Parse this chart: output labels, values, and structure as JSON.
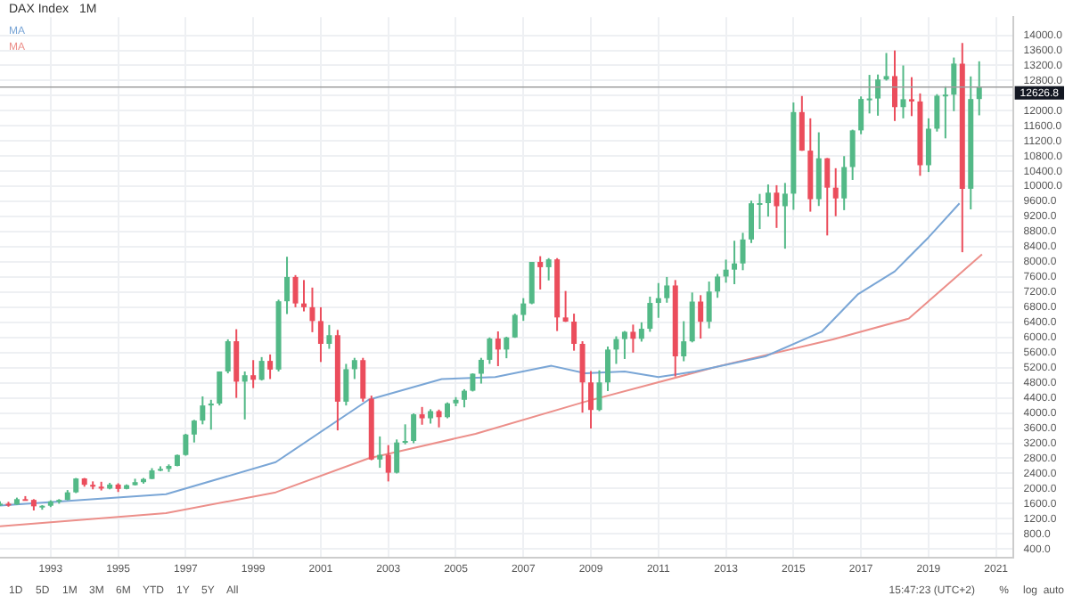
{
  "chart_data": {
    "type": "candlestick",
    "title": "DAX Index",
    "subtitle": "1M",
    "xlim": [
      "1991-07",
      "2021-07"
    ],
    "xticks": [
      {
        "value": "1993",
        "label": "1993"
      },
      {
        "value": "1995",
        "label": "1995"
      },
      {
        "value": "1997",
        "label": "1997"
      },
      {
        "value": "1999",
        "label": "1999"
      },
      {
        "value": "2001",
        "label": "2001"
      },
      {
        "value": "2003",
        "label": "2003"
      },
      {
        "value": "2005",
        "label": "2005"
      },
      {
        "value": "2007",
        "label": "2007"
      },
      {
        "value": "2009",
        "label": "2009"
      },
      {
        "value": "2011",
        "label": "2011"
      },
      {
        "value": "2013",
        "label": "2013"
      },
      {
        "value": "2015",
        "label": "2015"
      },
      {
        "value": "2017",
        "label": "2017"
      },
      {
        "value": "2019",
        "label": "2019"
      },
      {
        "value": "2021",
        "label": "2021"
      }
    ],
    "ylim": [
      180,
      14480
    ],
    "yticks": [
      {
        "value": 400,
        "label": "400.0"
      },
      {
        "value": 800,
        "label": "800.0"
      },
      {
        "value": 1200,
        "label": "1200.0"
      },
      {
        "value": 1600,
        "label": "1600.0"
      },
      {
        "value": 2000,
        "label": "2000.0"
      },
      {
        "value": 2400,
        "label": "2400.0"
      },
      {
        "value": 2800,
        "label": "2800.0"
      },
      {
        "value": 3200,
        "label": "3200.0"
      },
      {
        "value": 3600,
        "label": "3600.0"
      },
      {
        "value": 4000,
        "label": "4000.0"
      },
      {
        "value": 4400,
        "label": "4400.0"
      },
      {
        "value": 4800,
        "label": "4800.0"
      },
      {
        "value": 5200,
        "label": "5200.0"
      },
      {
        "value": 5600,
        "label": "5600.0"
      },
      {
        "value": 6000,
        "label": "6000.0"
      },
      {
        "value": 6400,
        "label": "6400.0"
      },
      {
        "value": 6800,
        "label": "6800.0"
      },
      {
        "value": 7200,
        "label": "7200.0"
      },
      {
        "value": 7600,
        "label": "7600.0"
      },
      {
        "value": 8000,
        "label": "8000.0"
      },
      {
        "value": 8400,
        "label": "8400.0"
      },
      {
        "value": 8800,
        "label": "8800.0"
      },
      {
        "value": 9200,
        "label": "9200.0"
      },
      {
        "value": 9600,
        "label": "9600.0"
      },
      {
        "value": 10000,
        "label": "10000.0"
      },
      {
        "value": 10400,
        "label": "10400.0"
      },
      {
        "value": 10800,
        "label": "10800.0"
      },
      {
        "value": 11200,
        "label": "11200.0"
      },
      {
        "value": 11600,
        "label": "11600.0"
      },
      {
        "value": 12000,
        "label": "12000.0"
      },
      {
        "value": 12400,
        "label": null
      },
      {
        "value": 12800,
        "label": "12800.0"
      },
      {
        "value": 13200,
        "label": "13200.0"
      },
      {
        "value": 13600,
        "label": "13600.0"
      },
      {
        "value": 14000,
        "label": "14000.0"
      }
    ],
    "grid": true,
    "legend": "top left",
    "ref_lines": [
      {
        "axis": "y",
        "value": 12626.8,
        "label": "12626.8",
        "color": "#9e9e9e"
      }
    ],
    "annotations": [
      "1D",
      "5D",
      "1M",
      "3M",
      "6M",
      "YTD",
      "1Y",
      "5Y",
      "All",
      "15:47:23 (UTC+2)",
      "%",
      "log",
      "auto"
    ],
    "series": [
      {
        "type": "line",
        "name": "MA",
        "color": "#7aa6d6",
        "x": [
          "1991-07",
          "1996-06",
          "1999-09",
          "2002-06",
          "2004-08",
          "2006-03",
          "2007-11",
          "2008-11",
          "2010-01",
          "2011-01",
          "2012-02",
          "2014-03",
          "2015-11",
          "2016-12",
          "2018-01",
          "2019-01",
          "2019-12"
        ],
        "values": [
          1550,
          1850,
          2700,
          4350,
          4900,
          4950,
          5250,
          5050,
          5100,
          4950,
          5100,
          5500,
          6150,
          7150,
          7750,
          8650,
          9550
        ]
      },
      {
        "type": "line",
        "name": "MA",
        "color": "#ec8f8a",
        "x": [
          "1991-07",
          "1996-06",
          "1999-09",
          "2002-06",
          "2005-08",
          "2008-11",
          "2012-11",
          "2016-03",
          "2018-06",
          "2020-08"
        ],
        "values": [
          1000,
          1350,
          1900,
          2800,
          3450,
          4300,
          5250,
          5950,
          6500,
          8200
        ]
      },
      {
        "x": [
          "1991-07",
          "1991-10",
          "1992-01",
          "1992-04",
          "1992-07",
          "1992-10",
          "1993-01",
          "1993-04",
          "1993-07",
          "1993-10",
          "1994-01",
          "1994-04",
          "1994-07",
          "1994-10",
          "1995-01",
          "1995-04",
          "1995-07",
          "1995-10",
          "1996-01",
          "1996-04",
          "1996-07",
          "1996-10",
          "1997-01",
          "1997-04",
          "1997-07",
          "1997-10",
          "1998-01",
          "1998-04",
          "1998-07",
          "1998-10",
          "1999-01",
          "1999-04",
          "1999-07",
          "1999-10",
          "2000-01",
          "2000-04",
          "2000-07",
          "2000-10",
          "2001-01",
          "2001-04",
          "2001-07",
          "2001-10",
          "2002-01",
          "2002-04",
          "2002-07",
          "2002-10",
          "2003-01",
          "2003-04",
          "2003-07",
          "2003-10",
          "2004-01",
          "2004-04",
          "2004-07",
          "2004-10",
          "2005-01",
          "2005-04",
          "2005-07",
          "2005-10",
          "2006-01",
          "2006-04",
          "2006-07",
          "2006-10",
          "2007-01",
          "2007-04",
          "2007-07",
          "2007-10",
          "2008-01",
          "2008-04",
          "2008-07",
          "2008-10",
          "2009-01",
          "2009-04",
          "2009-07",
          "2009-10",
          "2010-01",
          "2010-04",
          "2010-07",
          "2010-10",
          "2011-01",
          "2011-04",
          "2011-07",
          "2011-10",
          "2012-01",
          "2012-04",
          "2012-07",
          "2012-10",
          "2013-01",
          "2013-04",
          "2013-07",
          "2013-10",
          "2014-01",
          "2014-04",
          "2014-07",
          "2014-10",
          "2015-01",
          "2015-04",
          "2015-07",
          "2015-10",
          "2016-01",
          "2016-04",
          "2016-07",
          "2016-10",
          "2017-01",
          "2017-04",
          "2017-07",
          "2017-10",
          "2018-01",
          "2018-04",
          "2018-07",
          "2018-10",
          "2019-01",
          "2019-04",
          "2019-07",
          "2019-10",
          "2020-01",
          "2020-04",
          "2020-07"
        ],
        "ohlc": [
          [
            1560,
            1660,
            1540,
            1600
          ],
          [
            1600,
            1650,
            1520,
            1578
          ],
          [
            1578,
            1760,
            1570,
            1720
          ],
          [
            1720,
            1800,
            1680,
            1700
          ],
          [
            1700,
            1720,
            1420,
            1530
          ],
          [
            1530,
            1560,
            1440,
            1545
          ],
          [
            1545,
            1690,
            1510,
            1660
          ],
          [
            1660,
            1720,
            1600,
            1700
          ],
          [
            1700,
            1960,
            1690,
            1900
          ],
          [
            1900,
            2280,
            1880,
            2267
          ],
          [
            2267,
            2280,
            2050,
            2100
          ],
          [
            2100,
            2190,
            1980,
            2050
          ],
          [
            2050,
            2180,
            1950,
            2000
          ],
          [
            2000,
            2150,
            1980,
            2106
          ],
          [
            2106,
            2140,
            1910,
            1990
          ],
          [
            1990,
            2110,
            1980,
            2090
          ],
          [
            2090,
            2260,
            2080,
            2170
          ],
          [
            2170,
            2280,
            2130,
            2254
          ],
          [
            2254,
            2540,
            2250,
            2480
          ],
          [
            2480,
            2590,
            2460,
            2520
          ],
          [
            2520,
            2640,
            2440,
            2600
          ],
          [
            2600,
            2900,
            2590,
            2889
          ],
          [
            2889,
            3450,
            2870,
            3430
          ],
          [
            3430,
            3820,
            3220,
            3800
          ],
          [
            3800,
            4440,
            3700,
            4200
          ],
          [
            4200,
            4350,
            3560,
            4250
          ],
          [
            4250,
            5100,
            4200,
            5100
          ],
          [
            5100,
            5950,
            5050,
            5900
          ],
          [
            5900,
            6218,
            4400,
            4830
          ],
          [
            4830,
            5100,
            3830,
            5000
          ],
          [
            5000,
            5400,
            4660,
            4880
          ],
          [
            4880,
            5480,
            4860,
            5380
          ],
          [
            5380,
            5550,
            4900,
            5150
          ],
          [
            5150,
            7000,
            5100,
            6958
          ],
          [
            6958,
            8136,
            6620,
            7600
          ],
          [
            7600,
            7650,
            6800,
            6900
          ],
          [
            6900,
            7520,
            6690,
            6800
          ],
          [
            6800,
            7320,
            6140,
            6434
          ],
          [
            6434,
            6800,
            5350,
            5830
          ],
          [
            5830,
            6330,
            5700,
            6060
          ],
          [
            6060,
            6200,
            3540,
            4300
          ],
          [
            4300,
            5300,
            4200,
            5160
          ],
          [
            5160,
            5460,
            4900,
            5400
          ],
          [
            5400,
            5460,
            4300,
            4380
          ],
          [
            4380,
            4460,
            2750,
            2770
          ],
          [
            2770,
            3380,
            2550,
            2893
          ],
          [
            2893,
            3150,
            2189,
            2420
          ],
          [
            2420,
            3300,
            2400,
            3220
          ],
          [
            3220,
            3700,
            3170,
            3260
          ],
          [
            3260,
            3990,
            3200,
            3965
          ],
          [
            3965,
            4160,
            3690,
            3860
          ],
          [
            3860,
            4100,
            3720,
            4050
          ],
          [
            4050,
            4090,
            3620,
            3890
          ],
          [
            3890,
            4280,
            3860,
            4256
          ],
          [
            4256,
            4420,
            4180,
            4350
          ],
          [
            4350,
            4630,
            4150,
            4590
          ],
          [
            4590,
            5050,
            4570,
            5040
          ],
          [
            5040,
            5460,
            4780,
            5408
          ],
          [
            5408,
            6000,
            5300,
            5970
          ],
          [
            5970,
            6160,
            5240,
            5680
          ],
          [
            5680,
            6020,
            5450,
            6000
          ],
          [
            6000,
            6630,
            5990,
            6597
          ],
          [
            6597,
            7040,
            6440,
            6900
          ],
          [
            6900,
            8000,
            6880,
            8000
          ],
          [
            8000,
            8151,
            7270,
            7860
          ],
          [
            7860,
            8100,
            7510,
            8067
          ],
          [
            8067,
            8100,
            6170,
            6530
          ],
          [
            6530,
            7230,
            6410,
            6420
          ],
          [
            6420,
            6630,
            5650,
            5830
          ],
          [
            5830,
            5900,
            4010,
            4810
          ],
          [
            4810,
            5110,
            3589,
            4080
          ],
          [
            4080,
            5130,
            4050,
            4810
          ],
          [
            4810,
            5760,
            4580,
            5680
          ],
          [
            5680,
            6030,
            5300,
            5957
          ],
          [
            5957,
            6170,
            5430,
            6150
          ],
          [
            6150,
            6340,
            5600,
            5965
          ],
          [
            5965,
            6400,
            5890,
            6230
          ],
          [
            6230,
            7080,
            6150,
            6914
          ],
          [
            6914,
            7440,
            6520,
            7040
          ],
          [
            7040,
            7600,
            6920,
            7376
          ],
          [
            7376,
            7520,
            4966,
            5500
          ],
          [
            5500,
            6430,
            5370,
            5898
          ],
          [
            5898,
            7190,
            5870,
            6950
          ],
          [
            6950,
            7120,
            5970,
            6416
          ],
          [
            6416,
            7480,
            6240,
            7216
          ],
          [
            7216,
            7680,
            7050,
            7612
          ],
          [
            7612,
            8060,
            7450,
            7795
          ],
          [
            7795,
            8560,
            7410,
            7959
          ],
          [
            7959,
            8770,
            7780,
            8594
          ],
          [
            8594,
            9620,
            8500,
            9552
          ],
          [
            9552,
            9800,
            8870,
            9556
          ],
          [
            9556,
            10050,
            9200,
            9833
          ],
          [
            9833,
            10030,
            8900,
            9474
          ],
          [
            9474,
            10090,
            8350,
            9806
          ],
          [
            9806,
            12220,
            9380,
            11966
          ],
          [
            11966,
            12391,
            10940,
            10945
          ],
          [
            10945,
            11800,
            9330,
            9660
          ],
          [
            9660,
            11430,
            9480,
            10743
          ],
          [
            10743,
            10750,
            8700,
            9965
          ],
          [
            9965,
            10480,
            9210,
            9680
          ],
          [
            9680,
            10800,
            9370,
            10511
          ],
          [
            10511,
            11500,
            10170,
            11481
          ],
          [
            11481,
            12380,
            11380,
            12313
          ],
          [
            12313,
            12950,
            11930,
            12325
          ],
          [
            12325,
            12960,
            11870,
            12829
          ],
          [
            12829,
            13530,
            12800,
            12918
          ],
          [
            12918,
            13597,
            11730,
            12097
          ],
          [
            12097,
            13200,
            11800,
            12306
          ],
          [
            12306,
            12890,
            11860,
            12247
          ],
          [
            12247,
            12460,
            10280,
            10559
          ],
          [
            10559,
            11800,
            10380,
            11526
          ],
          [
            11526,
            12440,
            11450,
            12399
          ],
          [
            12399,
            12650,
            11270,
            12428
          ],
          [
            12428,
            13410,
            11990,
            13249
          ],
          [
            13249,
            13795,
            8256,
            9936
          ],
          [
            9936,
            12910,
            9390,
            12311
          ],
          [
            12311,
            13310,
            11880,
            12626.8
          ]
        ],
        "colors": [
          "#53b987",
          "#eb4d5c",
          "#53b987",
          "#eb4d5c",
          "#eb4d5c",
          "#53b987",
          "#53b987",
          "#53b987",
          "#53b987",
          "#53b987",
          "#eb4d5c",
          "#eb4d5c",
          "#eb4d5c",
          "#53b987",
          "#eb4d5c",
          "#53b987",
          "#53b987",
          "#53b987",
          "#53b987",
          "#53b987",
          "#53b987",
          "#53b987",
          "#53b987",
          "#53b987",
          "#53b987",
          "#53b987",
          "#53b987",
          "#53b987",
          "#eb4d5c",
          "#53b987",
          "#eb4d5c",
          "#53b987",
          "#eb4d5c",
          "#53b987",
          "#53b987",
          "#eb4d5c",
          "#eb4d5c",
          "#eb4d5c",
          "#eb4d5c",
          "#53b987",
          "#eb4d5c",
          "#53b987",
          "#53b987",
          "#eb4d5c",
          "#eb4d5c",
          "#53b987",
          "#eb4d5c",
          "#53b987",
          "#53b987",
          "#53b987",
          "#eb4d5c",
          "#53b987",
          "#eb4d5c",
          "#53b987",
          "#53b987",
          "#53b987",
          "#53b987",
          "#53b987",
          "#53b987",
          "#eb4d5c",
          "#53b987",
          "#53b987",
          "#53b987",
          "#53b987",
          "#eb4d5c",
          "#53b987",
          "#eb4d5c",
          "#eb4d5c",
          "#eb4d5c",
          "#eb4d5c",
          "#eb4d5c",
          "#53b987",
          "#53b987",
          "#53b987",
          "#53b987",
          "#eb4d5c",
          "#53b987",
          "#53b987",
          "#53b987",
          "#53b987",
          "#eb4d5c",
          "#53b987",
          "#53b987",
          "#eb4d5c",
          "#53b987",
          "#53b987",
          "#53b987",
          "#53b987",
          "#53b987",
          "#53b987",
          "#53b987",
          "#53b987",
          "#eb4d5c",
          "#53b987",
          "#53b987",
          "#eb4d5c",
          "#eb4d5c",
          "#53b987",
          "#eb4d5c",
          "#eb4d5c",
          "#53b987",
          "#53b987",
          "#53b987",
          "#53b987",
          "#53b987",
          "#53b987",
          "#eb4d5c",
          "#53b987",
          "#eb4d5c",
          "#eb4d5c",
          "#53b987",
          "#53b987",
          "#53b987",
          "#53b987",
          "#eb4d5c",
          "#53b987",
          "#53b987"
        ]
      }
    ]
  }
}
